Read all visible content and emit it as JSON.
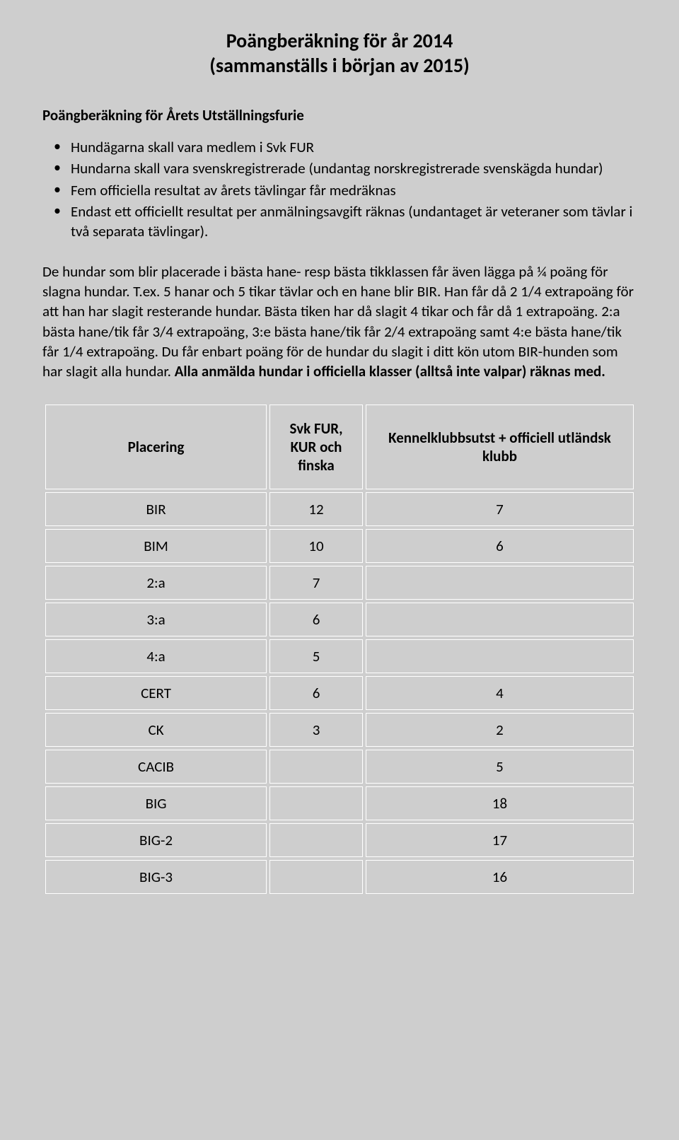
{
  "title_line1": "Poängberäkning för år 2014",
  "title_line2": "(sammanställs i början av 2015)",
  "section_heading": "Poängberäkning för Årets Utställningsfurie",
  "bullets": [
    "Hundägarna skall vara medlem i Svk FUR",
    "Hundarna skall vara svenskregistrerade (undantag norskregistrerade svenskägda hundar)",
    "Fem officiella resultat av årets tävlingar får medräknas",
    "Endast ett officiellt resultat per anmälningsavgift räknas (undantaget är veteraner som tävlar i två separata tävlingar)."
  ],
  "body_text_plain": "De hundar som blir placerade i bästa hane- resp bästa tikklassen får även lägga på ¼ poäng för slagna hundar. T.ex. 5 hanar och 5 tikar tävlar och en hane blir BIR. Han får då 2 1/4 extrapoäng för att han har slagit resterande hundar. Bästa tiken har då slagit 4 tikar och får då 1 extrapoäng. 2:a bästa hane/tik får 3/4 extrapoäng, 3:e bästa hane/tik får 2/4 extrapoäng samt 4:e bästa hane/tik får 1/4 extrapoäng. Du får enbart poäng för de hundar du slagit i ditt kön utom BIR-hunden som har slagit alla hundar. ",
  "body_text_bold": "Alla anmälda hundar i officiella klasser (alltså inte valpar) räknas med.",
  "table": {
    "columns": [
      "Placering",
      "Svk FUR, KUR och finska",
      "Kennelklubbsutst + officiell utländsk klubb"
    ],
    "rows": [
      {
        "place": "BIR",
        "svk": "12",
        "kennel": "7"
      },
      {
        "place": "BIM",
        "svk": "10",
        "kennel": "6"
      },
      {
        "place": "2:a",
        "svk": "7",
        "kennel": ""
      },
      {
        "place": "3:a",
        "svk": "6",
        "kennel": ""
      },
      {
        "place": "4:a",
        "svk": "5",
        "kennel": ""
      },
      {
        "place": "CERT",
        "svk": "6",
        "kennel": "4"
      },
      {
        "place": "CK",
        "svk": "3",
        "kennel": "2"
      },
      {
        "place": "CACIB",
        "svk": "",
        "kennel": "5"
      },
      {
        "place": "BIG",
        "svk": "",
        "kennel": "18"
      },
      {
        "place": "BIG-2",
        "svk": "",
        "kennel": "17"
      },
      {
        "place": "BIG-3",
        "svk": "",
        "kennel": "16"
      }
    ]
  },
  "style": {
    "background": "#cecece",
    "border_color": "#ffffff",
    "text_color": "#000000",
    "title_fontsize": 28,
    "body_fontsize": 21
  }
}
